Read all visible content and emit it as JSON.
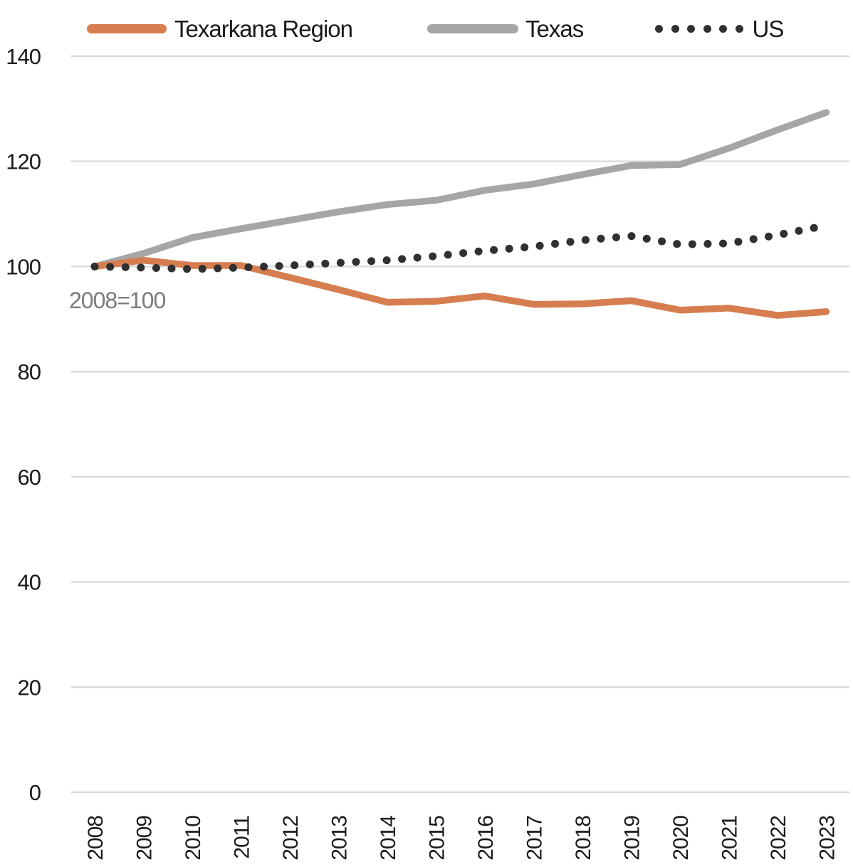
{
  "chart_data": {
    "type": "line",
    "annotation": "2008=100",
    "x": [
      "2008",
      "2009",
      "2010",
      "2011",
      "2012",
      "2013",
      "2014",
      "2015",
      "2016",
      "2017",
      "2018",
      "2019",
      "2020",
      "2021",
      "2022",
      "2023"
    ],
    "ylim": [
      0,
      140
    ],
    "yticks": [
      0,
      20,
      40,
      60,
      80,
      100,
      120,
      140
    ],
    "grid": "horizontal",
    "legend_position": "top",
    "series": [
      {
        "name": "Texarkana Region",
        "color": "#D67E50",
        "line_style": "solid",
        "values": [
          100,
          101.2,
          100.2,
          100.2,
          97.9,
          95.6,
          93.2,
          93.4,
          94.4,
          92.8,
          92.9,
          93.5,
          91.7,
          92.1,
          90.7,
          91.4
        ]
      },
      {
        "name": "Texas",
        "color": "#A6A6A6",
        "line_style": "solid",
        "values": [
          100,
          102.5,
          105.5,
          107.2,
          108.8,
          110.4,
          111.8,
          112.6,
          114.5,
          115.7,
          117.5,
          119.2,
          119.4,
          122.5,
          126,
          129.3
        ]
      },
      {
        "name": "US",
        "color": "#303030",
        "line_style": "dotted",
        "values": [
          100,
          99.8,
          99.5,
          99.8,
          100.2,
          100.7,
          101.2,
          102,
          103,
          103.8,
          105,
          105.8,
          104.2,
          104.4,
          106,
          107.8
        ]
      }
    ]
  },
  "colors": {
    "gridline": "#D9D9D9",
    "axis_text": "#1A1A1A",
    "annotation_text": "#7C7C7C"
  }
}
